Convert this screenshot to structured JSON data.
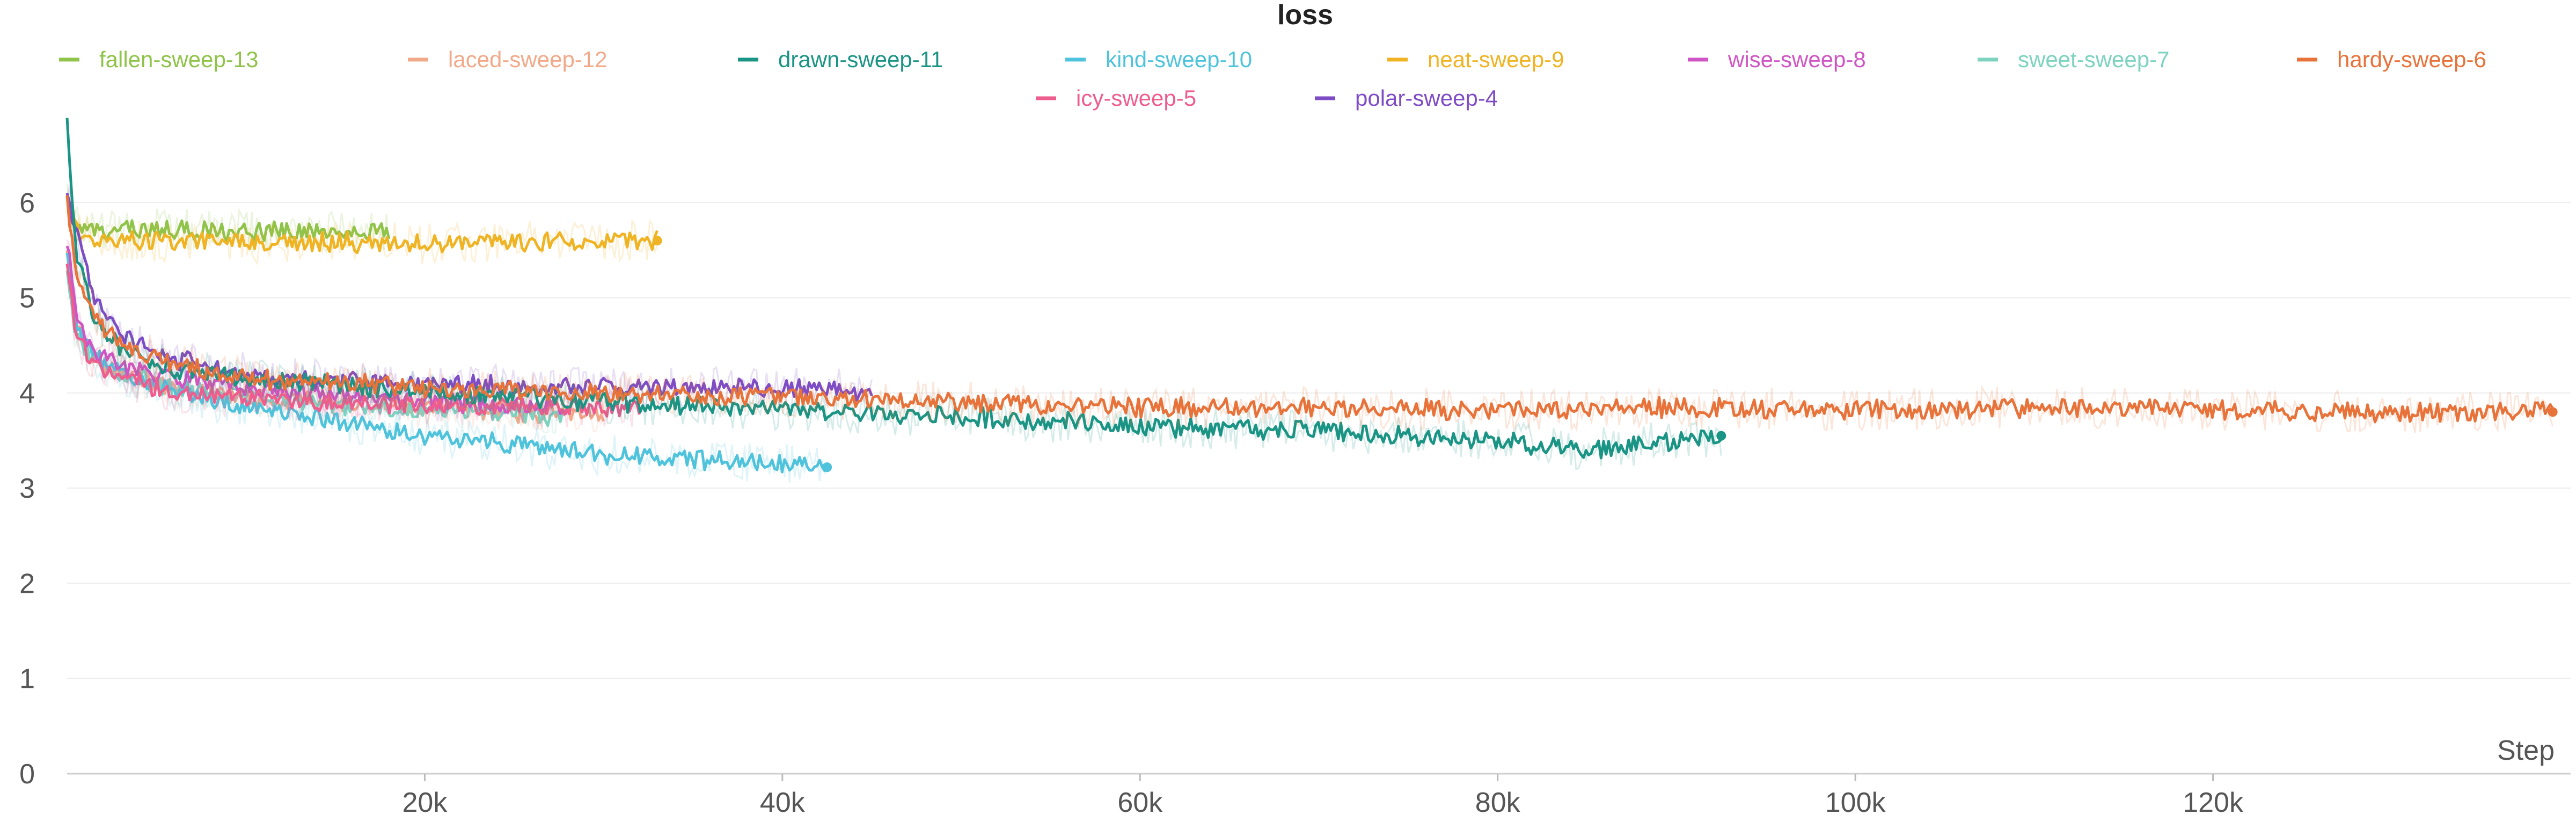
{
  "chart_data": {
    "type": "line",
    "title": "loss",
    "xlabel": "Step",
    "ylabel": "",
    "xlim": [
      0,
      140000
    ],
    "ylim": [
      0,
      7
    ],
    "x_ticks": [
      20000,
      40000,
      60000,
      80000,
      100000,
      120000
    ],
    "x_tick_labels": [
      "20k",
      "40k",
      "60k",
      "80k",
      "100k",
      "120k"
    ],
    "y_ticks": [
      0,
      1,
      2,
      3,
      4,
      5,
      6
    ],
    "grid": true,
    "legend_position": "top",
    "series": [
      {
        "name": "fallen-sweep-13",
        "color": "#8fc34a",
        "x": [
          0,
          500,
          2000,
          5000,
          10000,
          15000,
          18000
        ],
        "y": [
          6.1,
          5.75,
          5.7,
          5.72,
          5.7,
          5.7,
          5.68
        ]
      },
      {
        "name": "laced-sweep-12",
        "color": "#f2a98a",
        "x": [
          0,
          500,
          1500,
          3000,
          6000,
          10000,
          15000,
          20000,
          25000,
          30000
        ],
        "y": [
          5.5,
          4.7,
          4.35,
          4.2,
          4.05,
          3.95,
          3.9,
          3.85,
          3.8,
          3.78
        ]
      },
      {
        "name": "drawn-sweep-11",
        "color": "#1a9484",
        "x": [
          0,
          500,
          1500,
          3000,
          6000,
          10000,
          20000,
          30000,
          40000,
          50000,
          60000,
          70000,
          80000,
          85000,
          92500
        ],
        "y": [
          6.8,
          5.5,
          4.8,
          4.45,
          4.25,
          4.15,
          4.0,
          3.9,
          3.82,
          3.75,
          3.65,
          3.6,
          3.5,
          3.4,
          3.55
        ]
      },
      {
        "name": "kind-sweep-10",
        "color": "#4fc3dc",
        "x": [
          0,
          500,
          1500,
          3000,
          6000,
          10000,
          15000,
          20000,
          25000,
          30000,
          35000,
          40000,
          42500
        ],
        "y": [
          5.5,
          4.7,
          4.4,
          4.2,
          4.0,
          3.85,
          3.7,
          3.55,
          3.45,
          3.35,
          3.3,
          3.25,
          3.22
        ]
      },
      {
        "name": "neat-sweep-9",
        "color": "#f0b323",
        "x": [
          0,
          500,
          2000,
          5000,
          10000,
          20000,
          30000,
          33000
        ],
        "y": [
          6.0,
          5.7,
          5.62,
          5.6,
          5.58,
          5.58,
          5.6,
          5.6
        ]
      },
      {
        "name": "wise-sweep-8",
        "color": "#d055c4",
        "x": [
          0,
          500,
          1500,
          3000,
          6000,
          10000,
          15000,
          20000,
          25000,
          28000
        ],
        "y": [
          5.6,
          4.8,
          4.45,
          4.3,
          4.15,
          4.05,
          3.98,
          3.92,
          3.88,
          3.85
        ]
      },
      {
        "name": "sweet-sweep-7",
        "color": "#7dd3c0",
        "x": [
          0,
          500,
          1500,
          3000,
          6000,
          10000,
          15000,
          20000,
          25000,
          28000
        ],
        "y": [
          5.3,
          4.6,
          4.35,
          4.2,
          4.05,
          3.95,
          3.88,
          3.82,
          3.78,
          3.75
        ]
      },
      {
        "name": "hardy-sweep-6",
        "color": "#e8733a",
        "x": [
          0,
          500,
          1500,
          3000,
          6000,
          10000,
          20000,
          30000,
          40000,
          50000,
          60000,
          70000,
          80000,
          90000,
          100000,
          110000,
          120000,
          130000,
          139000
        ],
        "y": [
          6.0,
          5.3,
          4.8,
          4.5,
          4.3,
          4.15,
          4.05,
          4.0,
          3.95,
          3.9,
          3.85,
          3.85,
          3.82,
          3.85,
          3.82,
          3.85,
          3.82,
          3.8,
          3.8
        ]
      },
      {
        "name": "icy-sweep-5",
        "color": "#ee5d8d",
        "x": [
          0,
          500,
          1500,
          3000,
          6000,
          10000,
          15000,
          20000,
          25000,
          30000,
          32000
        ],
        "y": [
          5.4,
          4.6,
          4.3,
          4.15,
          4.0,
          3.95,
          3.9,
          3.87,
          3.85,
          3.85,
          3.85
        ]
      },
      {
        "name": "polar-sweep-4",
        "color": "#7e4cc4",
        "x": [
          0,
          500,
          1500,
          3000,
          6000,
          10000,
          15000,
          20000,
          25000,
          30000,
          35000,
          40000,
          45000
        ],
        "y": [
          6.1,
          5.7,
          5.0,
          4.6,
          4.35,
          4.2,
          4.12,
          4.1,
          4.08,
          4.05,
          4.05,
          4.05,
          4.03
        ]
      }
    ]
  }
}
